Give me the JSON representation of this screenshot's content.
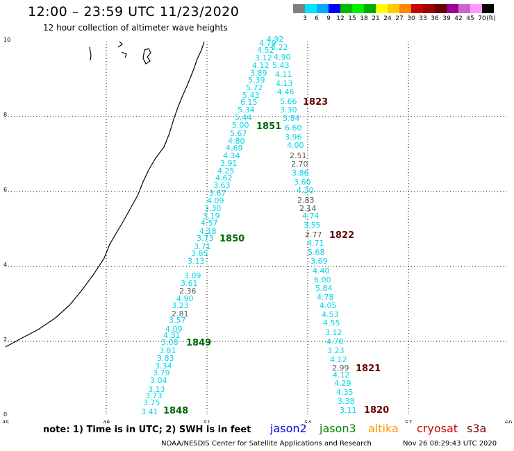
{
  "header": {
    "title": "12:00 – 23:59 UTC 11/23/2020",
    "subtitle": "12 hour collection of altimeter wave heights"
  },
  "colorbar": {
    "unit": "(ft)",
    "colors": [
      "#7f7f7f",
      "#00e5ff",
      "#00aaff",
      "#0000ff",
      "#00bb00",
      "#00ee00",
      "#00aa00",
      "#ffff00",
      "#ffcc00",
      "#ff8800",
      "#cc0000",
      "#990000",
      "#660000",
      "#990099",
      "#cc66cc",
      "#ff99ff",
      "#000000"
    ],
    "labels": [
      "3",
      "6",
      "9",
      "12",
      "15",
      "18",
      "21",
      "24",
      "27",
      "30",
      "33",
      "36",
      "39",
      "42",
      "45",
      "70"
    ]
  },
  "axes": {
    "x_ticks": [
      "45",
      "48",
      "51",
      "54",
      "57",
      "60"
    ],
    "y_ticks": [
      "0",
      "2",
      "4",
      "6",
      "8",
      "10"
    ]
  },
  "map": {
    "pass_a_cyan": [
      [
        "3.41",
        203,
        597
      ],
      [
        "3.75",
        206,
        584
      ],
      [
        "3.73",
        209,
        574
      ],
      [
        "3.13",
        213,
        565
      ],
      [
        "3.04",
        216,
        552
      ],
      [
        "3.79",
        220,
        541
      ],
      [
        "3.34",
        223,
        531
      ],
      [
        "3.83",
        226,
        520
      ],
      [
        "3.81",
        229,
        509
      ],
      [
        "3.08",
        232,
        497
      ],
      [
        "4.31",
        235,
        487
      ],
      [
        "4.09",
        238,
        478
      ],
      [
        "3.57",
        243,
        465
      ],
      [
        "3.23",
        247,
        444
      ],
      [
        "4.90",
        254,
        434
      ],
      [
        "3.61",
        260,
        412
      ],
      [
        "3.09",
        265,
        401
      ],
      [
        "3.13",
        270,
        380
      ],
      [
        "3.85",
        275,
        369
      ],
      [
        "3.71",
        279,
        359
      ],
      [
        "3.73",
        283,
        347
      ],
      [
        "4.18",
        287,
        337
      ],
      [
        "4.57",
        289,
        325
      ],
      [
        "3.19",
        292,
        315
      ],
      [
        "3.30",
        294,
        304
      ],
      [
        "4.09",
        298,
        293
      ],
      [
        "3.67",
        301,
        282
      ],
      [
        "3.63",
        307,
        271
      ],
      [
        "4.62",
        310,
        260
      ],
      [
        "4.25",
        313,
        250
      ],
      [
        "3.91",
        317,
        239
      ],
      [
        "4.34",
        321,
        228
      ],
      [
        "4.69",
        325,
        217
      ],
      [
        "4.80",
        328,
        207
      ],
      [
        "5.67",
        331,
        196
      ],
      [
        "5.00",
        334,
        184
      ],
      [
        "5.44",
        338,
        173
      ],
      [
        "5.34",
        342,
        162
      ],
      [
        "6.15",
        346,
        151
      ],
      [
        "5.43",
        349,
        141
      ],
      [
        "5.72",
        354,
        130
      ],
      [
        "5.39",
        357,
        119
      ],
      [
        "3.89",
        360,
        109
      ],
      [
        "4.12",
        363,
        98
      ],
      [
        "3.12",
        367,
        87
      ],
      [
        "4.52",
        370,
        76
      ],
      [
        "4.79",
        373,
        66
      ],
      [
        "4.92",
        384,
        60
      ]
    ],
    "pass_a_gray": [
      [
        "2.81",
        247,
        456
      ],
      [
        "2.36",
        258,
        423
      ]
    ],
    "pass_b_cyan": [
      [
        "5.22",
        390,
        72
      ],
      [
        "4.90",
        394,
        86
      ],
      [
        "5.43",
        392,
        98
      ],
      [
        "4.11",
        396,
        111
      ],
      [
        "4.13",
        397,
        124
      ],
      [
        "4.46",
        399,
        136
      ],
      [
        "5.66",
        403,
        150
      ],
      [
        "3.30",
        403,
        162
      ],
      [
        "3.84",
        407,
        174
      ],
      [
        "6.60",
        410,
        188
      ],
      [
        "3.96",
        410,
        201
      ],
      [
        "4.00",
        413,
        213
      ],
      [
        "3.86",
        420,
        253
      ],
      [
        "3.60",
        423,
        266
      ],
      [
        "4.30",
        427,
        278
      ],
      [
        "4.74",
        435,
        315
      ],
      [
        "3.55",
        437,
        328
      ],
      [
        "4.71",
        442,
        354
      ],
      [
        "5.68",
        443,
        367
      ],
      [
        "3.69",
        447,
        380
      ],
      [
        "4.40",
        450,
        394
      ],
      [
        "6.00",
        452,
        407
      ],
      [
        "5.84",
        454,
        419
      ],
      [
        "4.78",
        456,
        432
      ],
      [
        "4.05",
        460,
        444
      ],
      [
        "4.53",
        463,
        457
      ],
      [
        "4.55",
        465,
        469
      ],
      [
        "3.12",
        468,
        483
      ],
      [
        "4.78",
        470,
        496
      ],
      [
        "3.23",
        471,
        509
      ],
      [
        "4.12",
        475,
        522
      ],
      [
        "4.12",
        479,
        544
      ],
      [
        "4.29",
        481,
        556
      ],
      [
        "4.35",
        484,
        569
      ],
      [
        "3.38",
        486,
        582
      ],
      [
        "3.11",
        489,
        595
      ]
    ],
    "pass_b_gray": [
      [
        "2.51",
        417,
        228
      ],
      [
        "2.70",
        419,
        240
      ],
      [
        "2.83",
        428,
        292
      ],
      [
        "2.14",
        431,
        304
      ],
      [
        "2.77",
        439,
        342
      ],
      [
        "2.99",
        478,
        534
      ]
    ],
    "time_labels": [
      [
        "1848",
        235,
        596,
        "#006600"
      ],
      [
        "1849",
        268,
        498,
        "#006600"
      ],
      [
        "1850",
        316,
        348,
        "#006600"
      ],
      [
        "1851",
        369,
        186,
        "#006600"
      ],
      [
        "1823",
        436,
        151,
        "#660000"
      ],
      [
        "1822",
        474,
        343,
        "#660000"
      ],
      [
        "1821",
        512,
        535,
        "#660000"
      ],
      [
        "1820",
        524,
        595,
        "#660000"
      ]
    ]
  },
  "footer": {
    "note": "note: 1) Time is in UTC; 2) SWH is in feet",
    "satellites": [
      {
        "name": "jason2",
        "color": "#0000dd"
      },
      {
        "name": "jason3",
        "color": "#008800"
      },
      {
        "name": "altika",
        "color": "#ff9900"
      },
      {
        "name": "cryosat",
        "color": "#cc0000"
      },
      {
        "name": "s3a",
        "color": "#770000"
      }
    ],
    "credit": "NOAA/NESDIS Center for Satellite Applications and Research",
    "timestamp": "Nov 26 08:29:43 UTC 2020"
  }
}
